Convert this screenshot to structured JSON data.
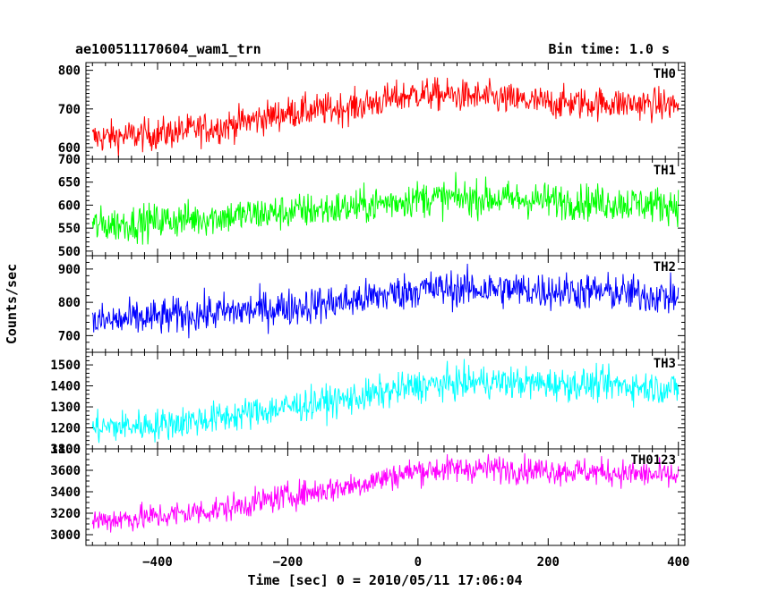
{
  "chart_data": {
    "type": "line",
    "title": "ae100511170604_wam1_trn",
    "bin_time_label": "Bin time: 1.0 s",
    "xlabel": "Time [sec] 0 = 2010/05/11 17:06:04",
    "ylabel": "Counts/sec",
    "xlim": [
      -510,
      410
    ],
    "x_ticks": [
      -400,
      -200,
      0,
      200,
      400
    ],
    "x_tick_labels": [
      "−400",
      "−200",
      "0",
      "200",
      "400"
    ],
    "grid": false,
    "panels": [
      {
        "name": "TH0",
        "color": "#ff0000",
        "ylim": [
          570,
          820
        ],
        "y_ticks": [
          600,
          700,
          800
        ],
        "y_tick_labels": [
          "600",
          "700",
          "800"
        ],
        "trend": {
          "x": [
            -500,
            -400,
            -300,
            -200,
            -100,
            0,
            100,
            200,
            300,
            400
          ],
          "y": [
            625,
            635,
            655,
            690,
            705,
            740,
            730,
            715,
            715,
            710
          ]
        },
        "noise_amplitude": 30
      },
      {
        "name": "TH1",
        "color": "#00ff00",
        "ylim": [
          490,
          700
        ],
        "y_ticks": [
          500,
          550,
          600,
          650,
          700
        ],
        "y_tick_labels": [
          "500",
          "550",
          "600",
          "650",
          "700"
        ],
        "trend": {
          "x": [
            -500,
            -400,
            -300,
            -200,
            -100,
            0,
            100,
            200,
            300,
            400
          ],
          "y": [
            555,
            565,
            575,
            585,
            595,
            615,
            615,
            610,
            605,
            600
          ]
        },
        "noise_amplitude": 28
      },
      {
        "name": "TH2",
        "color": "#0000ff",
        "ylim": [
          650,
          940
        ],
        "y_ticks": [
          700,
          800,
          900
        ],
        "y_tick_labels": [
          "700",
          "800",
          "900"
        ],
        "trend": {
          "x": [
            -500,
            -400,
            -300,
            -200,
            -100,
            0,
            100,
            200,
            300,
            400
          ],
          "y": [
            740,
            755,
            770,
            785,
            805,
            840,
            840,
            835,
            830,
            815
          ]
        },
        "noise_amplitude": 40
      },
      {
        "name": "TH3",
        "color": "#00ffff",
        "ylim": [
          1100,
          1560
        ],
        "y_ticks": [
          1100,
          1200,
          1300,
          1400,
          1500
        ],
        "y_tick_labels": [
          "1100",
          "1200",
          "1300",
          "1400",
          "1500"
        ],
        "trend": {
          "x": [
            -500,
            -400,
            -300,
            -200,
            -100,
            0,
            100,
            200,
            300,
            400
          ],
          "y": [
            1200,
            1215,
            1250,
            1300,
            1340,
            1400,
            1420,
            1410,
            1405,
            1385
          ]
        },
        "noise_amplitude": 55
      },
      {
        "name": "TH0123",
        "color": "#ff00ff",
        "ylim": [
          2900,
          3800
        ],
        "y_ticks": [
          3000,
          3200,
          3400,
          3600,
          3800
        ],
        "y_tick_labels": [
          "3000",
          "3200",
          "3400",
          "3600",
          "3800"
        ],
        "trend": {
          "x": [
            -500,
            -400,
            -300,
            -200,
            -100,
            0,
            100,
            200,
            300,
            400
          ],
          "y": [
            3130,
            3170,
            3240,
            3360,
            3460,
            3600,
            3620,
            3600,
            3580,
            3540
          ]
        },
        "noise_amplitude": 90
      }
    ]
  }
}
